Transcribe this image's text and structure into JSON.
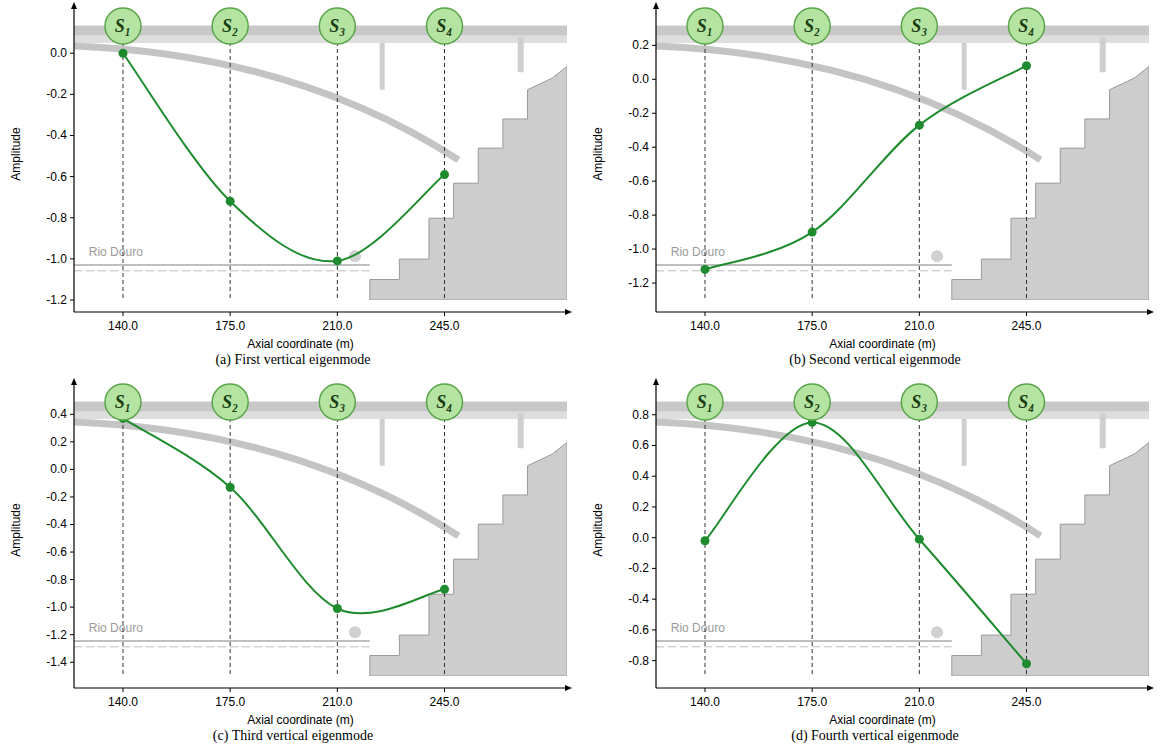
{
  "chart_data": [
    {
      "type": "line",
      "title": "(a) First vertical eigenmode",
      "x": [
        140,
        175,
        210,
        245
      ],
      "values": [
        0.0,
        -0.72,
        -1.01,
        -0.59
      ],
      "x_label": "Axial coordinate (m)",
      "y_label": "Amplitude",
      "xlim": [
        124,
        285
      ],
      "ylim": [
        -1.2,
        0.22
      ],
      "xticks": [
        {
          "value": 140,
          "label": "140.0"
        },
        {
          "value": 175,
          "label": "175.0"
        },
        {
          "value": 210,
          "label": "210.0"
        },
        {
          "value": 245,
          "label": "245.0"
        }
      ],
      "yticks": [
        {
          "value": -1.2,
          "label": "-1.2"
        },
        {
          "value": -1.0,
          "label": "-1.0"
        },
        {
          "value": -0.8,
          "label": "-0.8"
        },
        {
          "value": -0.6,
          "label": "-0.6"
        },
        {
          "value": -0.4,
          "label": "-0.4"
        },
        {
          "value": -0.2,
          "label": "-0.2"
        },
        {
          "value": 0.0,
          "label": "0.0"
        }
      ],
      "color": "#1e8c2e",
      "marker": "circle",
      "sensors": [
        "S₁",
        "S₂",
        "S₃",
        "S₄"
      ],
      "annotation": "Rio Douro"
    },
    {
      "type": "line",
      "title": "(b) Second vertical eigenmode",
      "x": [
        140,
        175,
        210,
        245
      ],
      "values": [
        -1.12,
        -0.9,
        -0.27,
        0.08
      ],
      "x_label": "Axial coordinate (m)",
      "y_label": "Amplitude",
      "xlim": [
        124,
        285
      ],
      "ylim": [
        -1.3,
        0.42
      ],
      "xticks": [
        {
          "value": 140,
          "label": "140.0"
        },
        {
          "value": 175,
          "label": "175.0"
        },
        {
          "value": 210,
          "label": "210.0"
        },
        {
          "value": 245,
          "label": "245.0"
        }
      ],
      "yticks": [
        {
          "value": -1.2,
          "label": "-1.2"
        },
        {
          "value": -1.0,
          "label": "-1.0"
        },
        {
          "value": -0.8,
          "label": "-0.8"
        },
        {
          "value": -0.6,
          "label": "-0.6"
        },
        {
          "value": -0.4,
          "label": "-0.4"
        },
        {
          "value": -0.2,
          "label": "-0.2"
        },
        {
          "value": 0.0,
          "label": "0.0"
        },
        {
          "value": 0.2,
          "label": "0.2"
        }
      ],
      "color": "#1e8c2e",
      "marker": "circle",
      "sensors": [
        "S₁",
        "S₂",
        "S₃",
        "S₄"
      ],
      "annotation": "Rio Douro"
    },
    {
      "type": "line",
      "title": "(c) Third vertical eigenmode",
      "x": [
        140,
        175,
        210,
        245
      ],
      "values": [
        0.37,
        -0.13,
        -1.01,
        -0.87
      ],
      "x_label": "Axial coordinate (m)",
      "y_label": "Amplitude",
      "xlim": [
        124,
        285
      ],
      "ylim": [
        -1.5,
        0.62
      ],
      "xticks": [
        {
          "value": 140,
          "label": "140.0"
        },
        {
          "value": 175,
          "label": "175.0"
        },
        {
          "value": 210,
          "label": "210.0"
        },
        {
          "value": 245,
          "label": "245.0"
        }
      ],
      "yticks": [
        {
          "value": -1.4,
          "label": "-1.4"
        },
        {
          "value": -1.2,
          "label": "-1.2"
        },
        {
          "value": -1.0,
          "label": "-1.0"
        },
        {
          "value": -0.8,
          "label": "-0.8"
        },
        {
          "value": -0.6,
          "label": "-0.6"
        },
        {
          "value": -0.4,
          "label": "-0.4"
        },
        {
          "value": -0.2,
          "label": "-0.2"
        },
        {
          "value": 0.0,
          "label": "0.0"
        },
        {
          "value": 0.2,
          "label": "0.2"
        },
        {
          "value": 0.4,
          "label": "0.4"
        }
      ],
      "color": "#1e8c2e",
      "marker": "circle",
      "sensors": [
        "S₁",
        "S₂",
        "S₃",
        "S₄"
      ],
      "annotation": "Rio Douro"
    },
    {
      "type": "line",
      "title": "(d) Fourth vertical eigenmode",
      "x": [
        140,
        175,
        210,
        245
      ],
      "values": [
        -0.02,
        0.75,
        -0.01,
        -0.82
      ],
      "x_label": "Axial coordinate (m)",
      "y_label": "Amplitude",
      "xlim": [
        124,
        285
      ],
      "ylim": [
        -0.9,
        1.0
      ],
      "xticks": [
        {
          "value": 140,
          "label": "140.0"
        },
        {
          "value": 175,
          "label": "175.0"
        },
        {
          "value": 210,
          "label": "210.0"
        },
        {
          "value": 245,
          "label": "245.0"
        }
      ],
      "yticks": [
        {
          "value": -0.8,
          "label": "-0.8"
        },
        {
          "value": -0.6,
          "label": "-0.6"
        },
        {
          "value": -0.4,
          "label": "-0.4"
        },
        {
          "value": -0.2,
          "label": "-0.2"
        },
        {
          "value": 0.0,
          "label": "0.0"
        },
        {
          "value": 0.2,
          "label": "0.2"
        },
        {
          "value": 0.4,
          "label": "0.4"
        },
        {
          "value": 0.6,
          "label": "0.6"
        },
        {
          "value": 0.8,
          "label": "0.8"
        }
      ],
      "color": "#1e8c2e",
      "marker": "circle",
      "sensors": [
        "S₁",
        "S₂",
        "S₃",
        "S₄"
      ],
      "annotation": "Rio Douro"
    }
  ]
}
